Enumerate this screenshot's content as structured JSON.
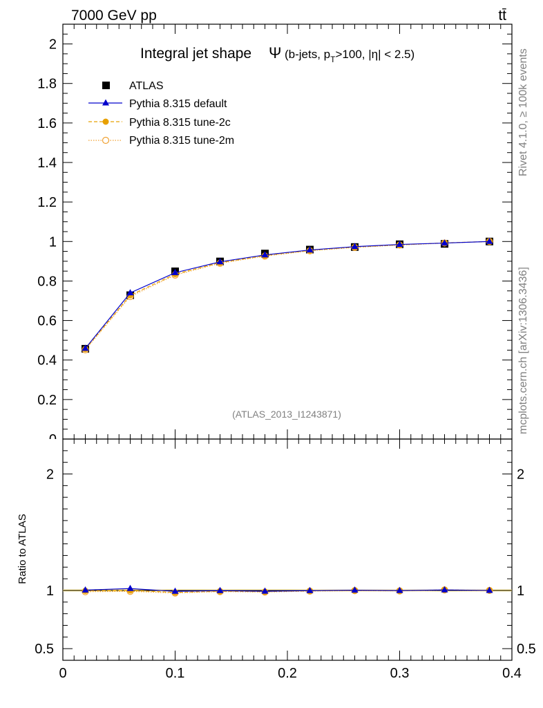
{
  "header": {
    "energy_label": "7000 GeV pp",
    "process_label": "tt̄",
    "side_label_top": "Rivet 4.1.0, ≥ 100k events",
    "side_label_bottom": "mcplots.cern.ch [arXiv:1306.3436]"
  },
  "chart_data": {
    "type": "line",
    "title": "Integral jet shape",
    "title_symbol": "Ψ",
    "title_condition_pre": "(b-jets, p",
    "title_condition_sub": "T",
    "title_condition_post": ">100, |η| < 2.5)",
    "analysis_id": "(ATLAS_2013_I1243871)",
    "xlabel": "",
    "ylabel_ratio": "Ratio to ATLAS",
    "xlim": [
      0,
      0.4
    ],
    "ylim_main": [
      0,
      2.1
    ],
    "ylim_ratio": [
      0.4,
      2.3
    ],
    "x_ticks": [
      "0",
      "0.1",
      "0.2",
      "0.3",
      "0.4"
    ],
    "y_ticks_main": [
      "0.2",
      "0.4",
      "0.6",
      "0.8",
      "1",
      "1.2",
      "1.4",
      "1.6",
      "1.8",
      "2"
    ],
    "y_tick_main_clipped": "0",
    "y_ticks_ratio": [
      "0.5",
      "1",
      "2"
    ],
    "x": [
      0.02,
      0.06,
      0.1,
      0.14,
      0.18,
      0.22,
      0.26,
      0.3,
      0.34,
      0.38
    ],
    "series": [
      {
        "name": "ATLAS",
        "style": "data",
        "values": [
          0.457,
          0.728,
          0.849,
          0.899,
          0.939,
          0.959,
          0.972,
          0.986,
          0.988,
          1.0
        ]
      },
      {
        "name": "Pythia 8.315 default",
        "style": "default",
        "values": [
          0.459,
          0.74,
          0.842,
          0.897,
          0.932,
          0.957,
          0.974,
          0.985,
          0.992,
          1.0
        ]
      },
      {
        "name": "Pythia 8.315 tune-2c",
        "style": "tune2c",
        "values": [
          0.456,
          0.728,
          0.835,
          0.893,
          0.929,
          0.955,
          0.972,
          0.983,
          0.993,
          1.0
        ]
      },
      {
        "name": "Pythia 8.315 tune-2m",
        "style": "tune2m",
        "values": [
          0.452,
          0.722,
          0.83,
          0.89,
          0.926,
          0.953,
          0.97,
          0.982,
          0.992,
          1.0
        ]
      }
    ],
    "ratio_series": [
      {
        "name": "Pythia 8.315 default",
        "style": "default",
        "values": [
          1.003,
          1.016,
          0.992,
          0.998,
          0.993,
          0.998,
          1.002,
          0.999,
          1.004,
          1.0
        ]
      },
      {
        "name": "Pythia 8.315 tune-2c",
        "style": "tune2c",
        "values": [
          0.997,
          1.0,
          0.983,
          0.993,
          0.989,
          0.996,
          1.0,
          0.997,
          1.005,
          1.0
        ]
      },
      {
        "name": "Pythia 8.315 tune-2m",
        "style": "tune2m",
        "values": [
          0.989,
          0.992,
          0.978,
          0.99,
          0.986,
          0.994,
          0.998,
          0.996,
          1.004,
          1.0
        ]
      }
    ],
    "colors": {
      "data": "#000000",
      "default": "#0000cc",
      "tune2c": "#e8a000",
      "tune2m": "#f0a030",
      "band": "#ffe680"
    }
  }
}
